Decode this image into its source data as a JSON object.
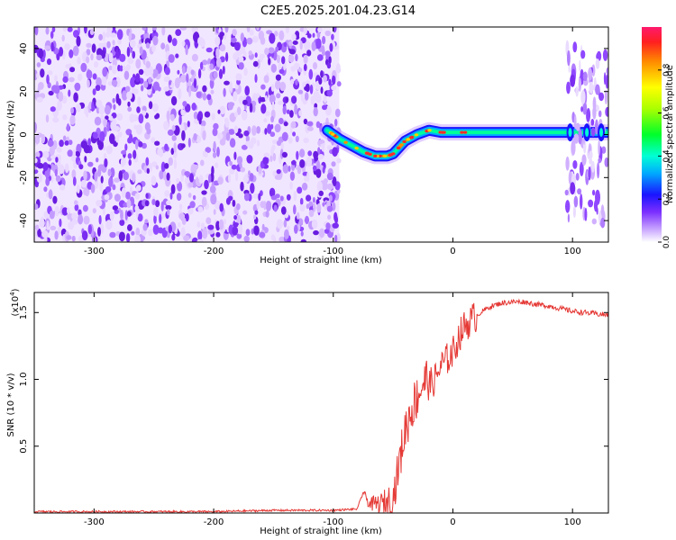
{
  "title": "C2E5.2025.201.04.23.G14",
  "chart_data": [
    {
      "type": "heatmap",
      "xlabel": "Height of straight line (km)",
      "ylabel": "Frequency (Hz)",
      "xlim": [
        -350,
        130
      ],
      "ylim": [
        -50,
        50
      ],
      "xticks": [
        -300,
        -200,
        -100,
        0,
        100
      ],
      "yticks": [
        -40,
        -20,
        0,
        20,
        40
      ],
      "colorbar": {
        "label": "Normalized spectral amplitude",
        "range": [
          0,
          1
        ],
        "ticks": [
          0.0,
          0.2,
          0.4,
          0.6,
          0.8
        ]
      },
      "regions": {
        "noise_height_range": [
          -350,
          -95
        ],
        "signal_track": [
          [
            -105,
            2
          ],
          [
            -95,
            -2
          ],
          [
            -85,
            -5
          ],
          [
            -75,
            -8
          ],
          [
            -65,
            -10
          ],
          [
            -55,
            -10
          ],
          [
            -50,
            -9
          ],
          [
            -45,
            -6
          ],
          [
            -40,
            -3
          ],
          [
            -30,
            0
          ],
          [
            -20,
            2
          ],
          [
            -10,
            1
          ],
          [
            0,
            1
          ],
          [
            20,
            1
          ],
          [
            60,
            1
          ],
          [
            95,
            1
          ],
          [
            130,
            1
          ]
        ],
        "vertical_spread_height_range": [
          95,
          130
        ]
      },
      "grid": false
    },
    {
      "type": "line",
      "xlabel": "Height of straight line (km)",
      "ylabel": "SNR (10 * v/v)",
      "yscale_label": "(x10",
      "yscale_exponent": "4",
      "xlim": [
        -350,
        130
      ],
      "ylim": [
        0,
        1.65
      ],
      "xticks": [
        -300,
        -200,
        -100,
        0,
        100
      ],
      "yticks": [
        0.5,
        1.0,
        1.5
      ],
      "series": [
        {
          "color": "#e53935",
          "x": [
            -350,
            -300,
            -250,
            -200,
            -150,
            -100,
            -80,
            -75,
            -70,
            -60,
            -50,
            -45,
            -40,
            -35,
            -30,
            -25,
            -20,
            -15,
            -10,
            -5,
            0,
            5,
            10,
            20,
            30,
            40,
            50,
            60,
            70,
            80,
            90,
            100,
            110,
            120,
            130
          ],
          "values": [
            0.01,
            0.01,
            0.01,
            0.01,
            0.02,
            0.02,
            0.03,
            0.15,
            0.05,
            0.03,
            0.06,
            0.3,
            0.55,
            0.7,
            0.8,
            0.9,
            0.95,
            1.0,
            1.1,
            1.15,
            1.2,
            1.32,
            1.4,
            1.48,
            1.54,
            1.57,
            1.58,
            1.58,
            1.56,
            1.55,
            1.53,
            1.51,
            1.5,
            1.49,
            1.48
          ]
        }
      ],
      "grid": false
    }
  ]
}
